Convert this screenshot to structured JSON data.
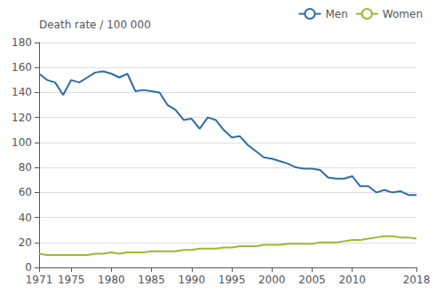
{
  "chart_data": {
    "type": "line",
    "ylabel": "Death rate / 100 000",
    "x": [
      1971,
      1972,
      1973,
      1974,
      1975,
      1976,
      1977,
      1978,
      1979,
      1980,
      1981,
      1982,
      1983,
      1984,
      1985,
      1986,
      1987,
      1988,
      1989,
      1990,
      1991,
      1992,
      1993,
      1994,
      1995,
      1996,
      1997,
      1998,
      1999,
      2000,
      2001,
      2002,
      2003,
      2004,
      2005,
      2006,
      2007,
      2008,
      2009,
      2010,
      2011,
      2012,
      2013,
      2014,
      2015,
      2016,
      2017,
      2018
    ],
    "series": [
      {
        "name": "Men",
        "color": "#2E6DA4",
        "values": [
          155,
          150,
          148,
          138,
          150,
          148,
          152,
          156,
          157,
          155,
          152,
          155,
          141,
          142,
          141,
          140,
          130,
          126,
          118,
          119,
          111,
          120,
          118,
          110,
          104,
          105,
          98,
          93,
          88,
          87,
          85,
          83,
          80,
          79,
          79,
          78,
          72,
          71,
          71,
          73,
          65,
          65,
          60,
          62,
          60,
          61,
          58,
          58
        ]
      },
      {
        "name": "Women",
        "color": "#9BBB2F",
        "values": [
          11,
          10,
          10,
          10,
          10,
          10,
          10,
          11,
          11,
          12,
          11,
          12,
          12,
          12,
          13,
          13,
          13,
          13,
          14,
          14,
          15,
          15,
          15,
          16,
          16,
          17,
          17,
          17,
          18,
          18,
          18,
          19,
          19,
          19,
          19,
          20,
          20,
          20,
          21,
          22,
          22,
          23,
          24,
          25,
          25,
          24,
          24,
          23
        ]
      }
    ],
    "xlim": [
      1971,
      2018
    ],
    "xticks": [
      1971,
      1975,
      1980,
      1985,
      1990,
      1995,
      2000,
      2005,
      2010,
      2018
    ],
    "ylim": [
      0,
      180
    ],
    "yticks": [
      0,
      20,
      40,
      60,
      80,
      100,
      120,
      140,
      160,
      180
    ],
    "grid": true,
    "legend": "upper right"
  }
}
